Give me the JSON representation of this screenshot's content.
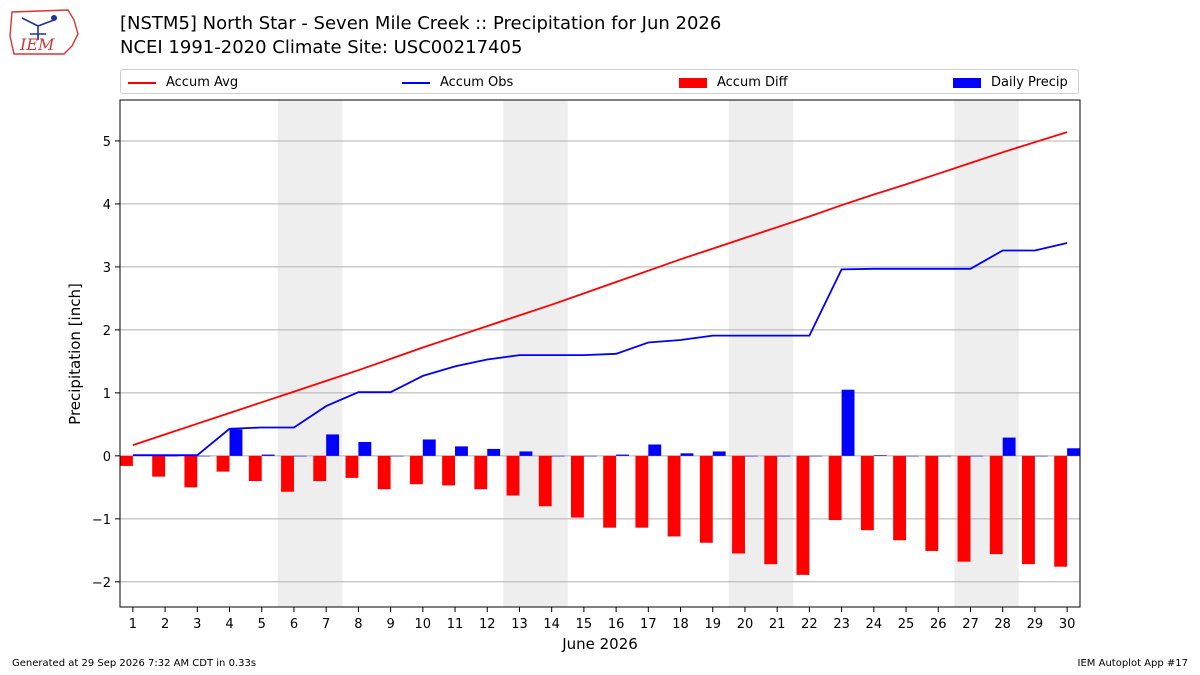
{
  "header": {
    "logo_text": "IEM",
    "title_line1": "[NSTM5] North Star - Seven Mile Creek :: Precipitation for Jun 2026",
    "title_line2": "NCEI 1991-2020 Climate Site: USC00217405"
  },
  "legend": {
    "placement": "top",
    "entries": [
      {
        "label": "Accum Avg",
        "kind": "line",
        "color": "#ff0000"
      },
      {
        "label": "Accum Obs",
        "kind": "line",
        "color": "#0000ff"
      },
      {
        "label": "Accum Diff",
        "kind": "patch",
        "color": "#ff0000"
      },
      {
        "label": "Daily Precip",
        "kind": "patch",
        "color": "#0000ff"
      }
    ]
  },
  "chart_data": {
    "type": "bar",
    "xlabel": "June 2026",
    "ylabel": "Precipitation [inch]",
    "ylim": [
      -2.4,
      5.65
    ],
    "yticks": [
      -2,
      -1,
      0,
      1,
      2,
      3,
      4,
      5
    ],
    "x": [
      1,
      2,
      3,
      4,
      5,
      6,
      7,
      8,
      9,
      10,
      11,
      12,
      13,
      14,
      15,
      16,
      17,
      18,
      19,
      20,
      21,
      22,
      23,
      24,
      25,
      26,
      27,
      28,
      29,
      30
    ],
    "grid": true,
    "weekend_shading": [
      [
        6,
        7
      ],
      [
        13,
        14
      ],
      [
        20,
        21
      ],
      [
        27,
        28
      ]
    ],
    "colors": {
      "avg": "#ff0000",
      "obs": "#0000ff",
      "diff": "#ff0000",
      "daily": "#0000ff",
      "weekend": "#eeeeee",
      "grid": "#b0b0b0"
    },
    "series": [
      {
        "name": "Accum Avg",
        "kind": "line",
        "values": [
          0.17,
          0.34,
          0.51,
          0.68,
          0.85,
          1.02,
          1.19,
          1.36,
          1.54,
          1.72,
          1.89,
          2.06,
          2.23,
          2.4,
          2.58,
          2.76,
          2.94,
          3.12,
          3.29,
          3.46,
          3.63,
          3.8,
          3.98,
          4.15,
          4.31,
          4.48,
          4.65,
          4.82,
          4.98,
          5.14
        ]
      },
      {
        "name": "Accum Obs",
        "kind": "line",
        "values": [
          0.01,
          0.01,
          0.01,
          0.43,
          0.45,
          0.45,
          0.79,
          1.01,
          1.01,
          1.27,
          1.42,
          1.53,
          1.6,
          1.6,
          1.6,
          1.62,
          1.8,
          1.84,
          1.91,
          1.91,
          1.91,
          1.91,
          2.96,
          2.97,
          2.97,
          2.97,
          2.97,
          3.26,
          3.26,
          3.38
        ]
      },
      {
        "name": "Accum Diff",
        "kind": "bar",
        "values": [
          -0.16,
          -0.33,
          -0.5,
          -0.25,
          -0.4,
          -0.57,
          -0.4,
          -0.35,
          -0.53,
          -0.45,
          -0.47,
          -0.53,
          -0.63,
          -0.8,
          -0.98,
          -1.14,
          -1.14,
          -1.28,
          -1.38,
          -1.55,
          -1.72,
          -1.89,
          -1.02,
          -1.18,
          -1.34,
          -1.51,
          -1.68,
          -1.56,
          -1.72,
          -1.76
        ]
      },
      {
        "name": "Daily Precip",
        "kind": "bar",
        "values": [
          0.01,
          0.0,
          0.0,
          0.42,
          0.02,
          0.0,
          0.34,
          0.22,
          0.0,
          0.26,
          0.15,
          0.11,
          0.07,
          0.0,
          0.0,
          0.02,
          0.18,
          0.04,
          0.07,
          0.0,
          0.0,
          0.0,
          1.05,
          0.01,
          0.0,
          0.0,
          0.0,
          0.29,
          0.0,
          0.12
        ]
      }
    ]
  },
  "footer": {
    "left": "Generated at 29 Sep 2026 7:32 AM CDT in 0.33s",
    "right": "IEM Autoplot App #17"
  }
}
